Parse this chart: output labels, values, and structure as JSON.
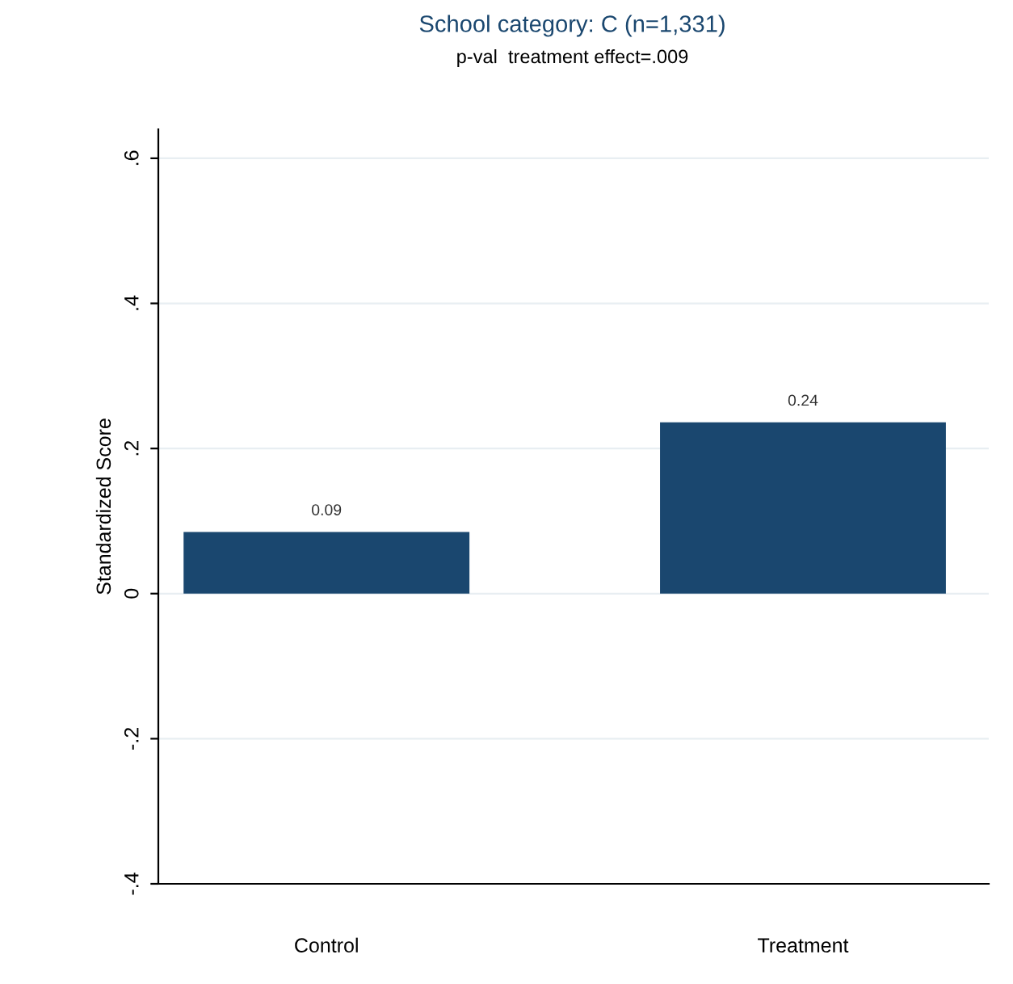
{
  "chart_data": {
    "type": "bar",
    "title": "School category: C (n=1,331)",
    "subtitle": "p-val  treatment effect=.009",
    "ylabel": "Standardized Score",
    "categories": [
      "Control",
      "Treatment"
    ],
    "values": [
      0.085,
      0.236
    ],
    "value_labels": [
      "0.09",
      "0.24"
    ],
    "color": "#1a476f",
    "ylim": [
      -0.4,
      0.64
    ],
    "yticks": [
      {
        "value": -0.4,
        "label": "-.4"
      },
      {
        "value": -0.2,
        "label": "-.2"
      },
      0,
      {
        "value": 0.2,
        "label": ".2"
      },
      {
        "value": 0.4,
        "label": ".4"
      },
      {
        "value": 0.6,
        "label": ".6"
      }
    ],
    "grid": "y"
  }
}
